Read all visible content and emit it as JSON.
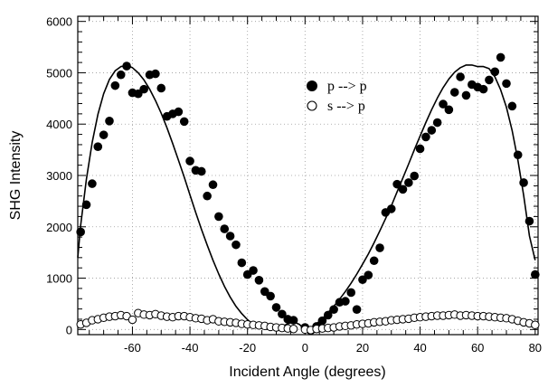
{
  "chart_data": {
    "type": "scatter",
    "title": "",
    "xlabel": "Incident Angle (degrees)",
    "ylabel": "SHG Intensity",
    "xlim": [
      -79,
      81
    ],
    "ylim": [
      -100,
      6100
    ],
    "xticks": [
      "-60",
      "-40",
      "-20",
      "0",
      "20",
      "40",
      "60",
      "80"
    ],
    "yticks": [
      "0",
      "1000",
      "2000",
      "3000",
      "4000",
      "5000",
      "6000"
    ],
    "grid": true,
    "legend_position": "top-right",
    "series": [
      {
        "name": "p --> p",
        "marker": "filled-circle",
        "points": [
          [
            -78,
            1900
          ],
          [
            -76,
            2430
          ],
          [
            -74,
            2840
          ],
          [
            -72,
            3560
          ],
          [
            -70,
            3790
          ],
          [
            -68,
            4060
          ],
          [
            -66,
            4750
          ],
          [
            -64,
            4960
          ],
          [
            -62,
            5130
          ],
          [
            -60,
            4610
          ],
          [
            -58,
            4590
          ],
          [
            -56,
            4680
          ],
          [
            -54,
            4960
          ],
          [
            -52,
            4980
          ],
          [
            -50,
            4700
          ],
          [
            -48,
            4150
          ],
          [
            -46,
            4200
          ],
          [
            -44,
            4240
          ],
          [
            -42,
            4050
          ],
          [
            -40,
            3280
          ],
          [
            -38,
            3100
          ],
          [
            -36,
            3080
          ],
          [
            -34,
            2600
          ],
          [
            -32,
            2820
          ],
          [
            -30,
            2200
          ],
          [
            -28,
            1960
          ],
          [
            -26,
            1820
          ],
          [
            -24,
            1650
          ],
          [
            -22,
            1300
          ],
          [
            -20,
            1070
          ],
          [
            -18,
            1150
          ],
          [
            -16,
            960
          ],
          [
            -14,
            740
          ],
          [
            -12,
            650
          ],
          [
            -10,
            430
          ],
          [
            -8,
            300
          ],
          [
            -6,
            200
          ],
          [
            -4,
            180
          ],
          [
            0,
            40
          ],
          [
            2,
            -20
          ],
          [
            4,
            60
          ],
          [
            6,
            170
          ],
          [
            8,
            280
          ],
          [
            10,
            390
          ],
          [
            12,
            530
          ],
          [
            14,
            550
          ],
          [
            16,
            720
          ],
          [
            18,
            390
          ],
          [
            20,
            970
          ],
          [
            22,
            1060
          ],
          [
            24,
            1340
          ],
          [
            26,
            1590
          ],
          [
            28,
            2280
          ],
          [
            30,
            2350
          ],
          [
            32,
            2830
          ],
          [
            34,
            2730
          ],
          [
            36,
            2860
          ],
          [
            38,
            2990
          ],
          [
            40,
            3520
          ],
          [
            42,
            3750
          ],
          [
            44,
            3880
          ],
          [
            46,
            4030
          ],
          [
            48,
            4390
          ],
          [
            50,
            4280
          ],
          [
            52,
            4620
          ],
          [
            54,
            4920
          ],
          [
            56,
            4560
          ],
          [
            58,
            4770
          ],
          [
            60,
            4720
          ],
          [
            62,
            4680
          ],
          [
            64,
            4860
          ],
          [
            66,
            5020
          ],
          [
            68,
            5300
          ],
          [
            70,
            4790
          ],
          [
            72,
            4350
          ],
          [
            74,
            3400
          ],
          [
            76,
            2860
          ],
          [
            78,
            2110
          ],
          [
            80,
            1070
          ]
        ]
      },
      {
        "name": "s --> p",
        "marker": "open-circle",
        "points": [
          [
            -78,
            100
          ],
          [
            -76,
            130
          ],
          [
            -74,
            180
          ],
          [
            -72,
            200
          ],
          [
            -70,
            230
          ],
          [
            -68,
            250
          ],
          [
            -66,
            260
          ],
          [
            -64,
            280
          ],
          [
            -62,
            260
          ],
          [
            -60,
            190
          ],
          [
            -58,
            320
          ],
          [
            -56,
            290
          ],
          [
            -54,
            280
          ],
          [
            -52,
            300
          ],
          [
            -50,
            270
          ],
          [
            -48,
            250
          ],
          [
            -46,
            240
          ],
          [
            -44,
            260
          ],
          [
            -42,
            260
          ],
          [
            -40,
            240
          ],
          [
            -38,
            220
          ],
          [
            -36,
            210
          ],
          [
            -34,
            180
          ],
          [
            -32,
            200
          ],
          [
            -30,
            160
          ],
          [
            -28,
            150
          ],
          [
            -26,
            140
          ],
          [
            -24,
            130
          ],
          [
            -22,
            110
          ],
          [
            -20,
            100
          ],
          [
            -18,
            90
          ],
          [
            -16,
            80
          ],
          [
            -14,
            70
          ],
          [
            -12,
            50
          ],
          [
            -10,
            40
          ],
          [
            -8,
            30
          ],
          [
            -6,
            20
          ],
          [
            -4,
            10
          ],
          [
            0,
            0
          ],
          [
            2,
            -10
          ],
          [
            4,
            10
          ],
          [
            6,
            20
          ],
          [
            8,
            30
          ],
          [
            10,
            40
          ],
          [
            12,
            60
          ],
          [
            14,
            70
          ],
          [
            16,
            80
          ],
          [
            18,
            100
          ],
          [
            20,
            110
          ],
          [
            22,
            120
          ],
          [
            24,
            140
          ],
          [
            26,
            150
          ],
          [
            28,
            160
          ],
          [
            30,
            180
          ],
          [
            32,
            190
          ],
          [
            34,
            200
          ],
          [
            36,
            210
          ],
          [
            38,
            230
          ],
          [
            40,
            240
          ],
          [
            42,
            250
          ],
          [
            44,
            260
          ],
          [
            46,
            270
          ],
          [
            48,
            270
          ],
          [
            50,
            280
          ],
          [
            52,
            290
          ],
          [
            54,
            270
          ],
          [
            56,
            280
          ],
          [
            58,
            270
          ],
          [
            60,
            260
          ],
          [
            62,
            260
          ],
          [
            64,
            250
          ],
          [
            66,
            240
          ],
          [
            68,
            230
          ],
          [
            70,
            220
          ],
          [
            72,
            200
          ],
          [
            74,
            170
          ],
          [
            76,
            140
          ],
          [
            78,
            120
          ],
          [
            80,
            90
          ]
        ]
      },
      {
        "marker": "line",
        "points": [
          [
            -79,
            1400
          ],
          [
            -78,
            2030
          ],
          [
            -76,
            2920
          ],
          [
            -74,
            3640
          ],
          [
            -72,
            4190
          ],
          [
            -70,
            4590
          ],
          [
            -68,
            4870
          ],
          [
            -66,
            5040
          ],
          [
            -64,
            5120
          ],
          [
            -62,
            5140
          ],
          [
            -60,
            5100
          ],
          [
            -58,
            5000
          ],
          [
            -56,
            4860
          ],
          [
            -54,
            4680
          ],
          [
            -52,
            4460
          ],
          [
            -50,
            4210
          ],
          [
            -48,
            3930
          ],
          [
            -46,
            3620
          ],
          [
            -44,
            3300
          ],
          [
            -42,
            2970
          ],
          [
            -40,
            2620
          ],
          [
            -38,
            2280
          ],
          [
            -36,
            1950
          ],
          [
            -34,
            1640
          ],
          [
            -32,
            1350
          ],
          [
            -30,
            1080
          ],
          [
            -28,
            840
          ],
          [
            -26,
            630
          ],
          [
            -24,
            450
          ],
          [
            -22,
            310
          ],
          [
            -20,
            190
          ],
          [
            -18,
            100
          ],
          [
            -16,
            40
          ],
          [
            -14,
            10
          ],
          [
            -12,
            0
          ],
          [
            -10,
            20
          ],
          [
            -8,
            60
          ],
          [
            -6,
            110
          ],
          [
            -4,
            150
          ],
          [
            -2,
            100
          ],
          [
            0,
            0
          ],
          [
            2,
            30
          ],
          [
            4,
            110
          ],
          [
            6,
            210
          ],
          [
            8,
            330
          ],
          [
            10,
            450
          ],
          [
            12,
            590
          ],
          [
            14,
            740
          ],
          [
            16,
            900
          ],
          [
            18,
            1080
          ],
          [
            20,
            1270
          ],
          [
            22,
            1470
          ],
          [
            24,
            1690
          ],
          [
            26,
            1920
          ],
          [
            28,
            2160
          ],
          [
            30,
            2410
          ],
          [
            32,
            2680
          ],
          [
            34,
            2950
          ],
          [
            36,
            3220
          ],
          [
            38,
            3500
          ],
          [
            40,
            3770
          ],
          [
            42,
            4030
          ],
          [
            44,
            4280
          ],
          [
            46,
            4510
          ],
          [
            48,
            4710
          ],
          [
            50,
            4880
          ],
          [
            52,
            5010
          ],
          [
            54,
            5100
          ],
          [
            56,
            5150
          ],
          [
            58,
            5150
          ],
          [
            60,
            5120
          ],
          [
            62,
            5120
          ],
          [
            64,
            5080
          ],
          [
            66,
            4920
          ],
          [
            68,
            4670
          ],
          [
            70,
            4330
          ],
          [
            72,
            3870
          ],
          [
            74,
            3300
          ],
          [
            76,
            2610
          ],
          [
            78,
            1820
          ],
          [
            80,
            1350
          ]
        ]
      }
    ]
  }
}
